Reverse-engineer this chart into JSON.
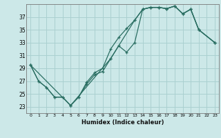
{
  "xlabel": "Humidex (Indice chaleur)",
  "xlim": [
    -0.5,
    23.5
  ],
  "ylim": [
    22.0,
    39.0
  ],
  "xticks": [
    0,
    1,
    2,
    3,
    4,
    5,
    6,
    7,
    8,
    9,
    10,
    11,
    12,
    13,
    14,
    15,
    16,
    17,
    18,
    19,
    20,
    21,
    22,
    23
  ],
  "yticks": [
    23,
    25,
    27,
    29,
    31,
    33,
    35,
    37
  ],
  "bg_color": "#cce8e8",
  "grid_color": "#aad0d0",
  "line_color": "#2a6e62",
  "curves": [
    {
      "x": [
        0,
        1,
        2,
        3,
        4,
        5,
        6,
        7,
        8,
        9,
        10,
        11,
        12,
        13,
        14,
        15,
        16,
        17,
        18,
        19,
        20,
        21,
        23
      ],
      "y": [
        29.5,
        27.0,
        26.0,
        24.5,
        24.5,
        23.2,
        24.5,
        26.5,
        28.0,
        28.5,
        30.5,
        32.5,
        31.5,
        33.0,
        38.2,
        38.5,
        38.5,
        38.3,
        38.7,
        37.5,
        38.2,
        35.0,
        33.0
      ]
    },
    {
      "x": [
        0,
        1,
        2,
        3,
        4,
        5,
        6,
        7,
        8,
        9,
        10,
        11,
        12,
        13,
        14,
        15,
        16,
        17,
        18,
        19,
        20,
        21,
        23
      ],
      "y": [
        29.5,
        27.0,
        26.0,
        24.5,
        24.5,
        23.2,
        24.5,
        26.8,
        28.3,
        29.0,
        32.0,
        33.8,
        35.2,
        36.5,
        38.2,
        38.5,
        38.5,
        38.3,
        38.7,
        37.5,
        38.2,
        35.0,
        33.0
      ]
    },
    {
      "x": [
        0,
        5,
        10,
        13,
        14,
        15,
        16,
        17,
        18,
        19,
        20,
        21,
        23
      ],
      "y": [
        29.5,
        23.2,
        30.5,
        36.5,
        38.2,
        38.5,
        38.5,
        38.3,
        38.7,
        37.5,
        38.2,
        35.0,
        33.0
      ]
    }
  ]
}
